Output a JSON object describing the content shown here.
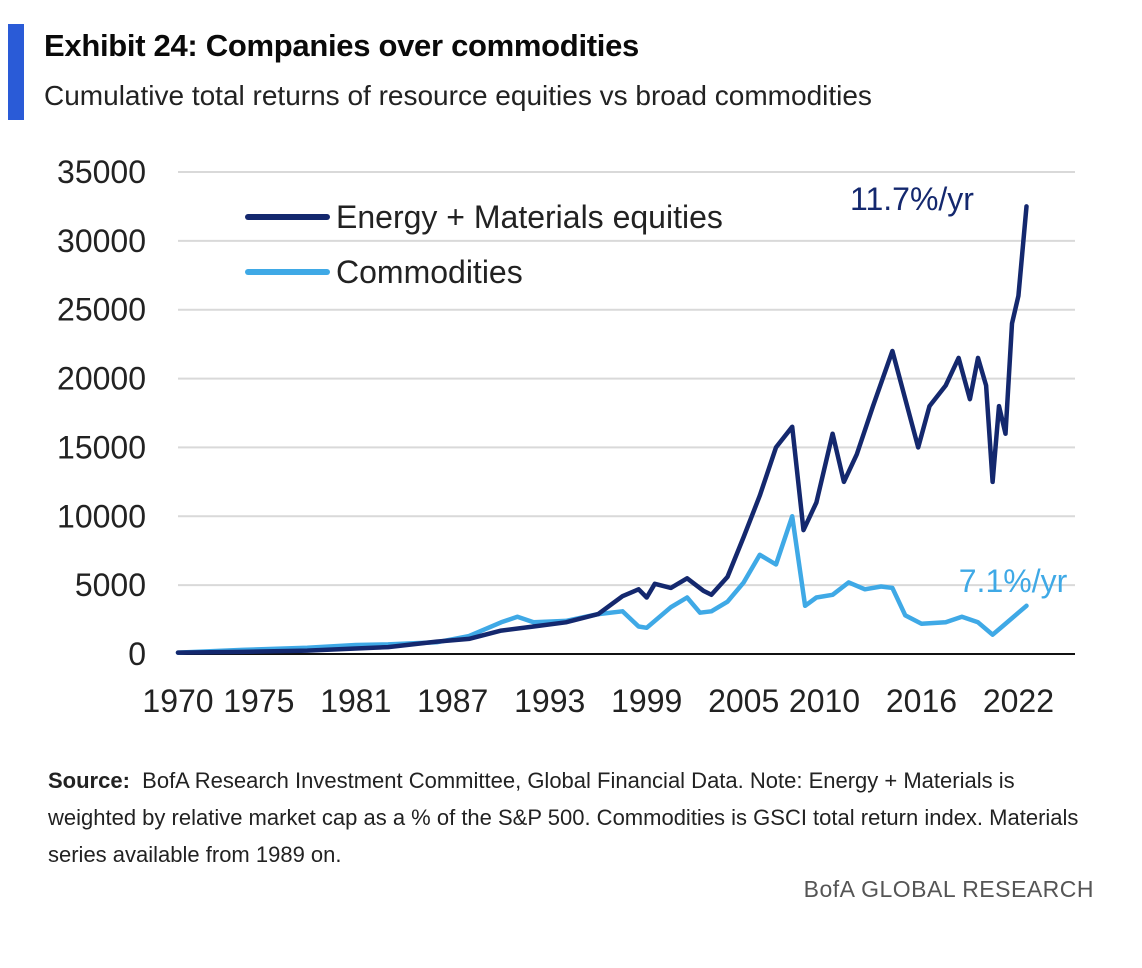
{
  "header": {
    "title": "Exhibit 24: Companies over commodities",
    "subtitle": "Cumulative total returns of resource equities vs broad commodities"
  },
  "footer": {
    "source_label": "Source:",
    "source_text": "BofA Research Investment Committee, Global Financial Data. Note: Energy + Materials is weighted by relative market cap as a % of the S&P 500. Commodities is GSCI total return index. Materials series available from 1989 on.",
    "brand": "BofA GLOBAL RESEARCH"
  },
  "colors": {
    "accent": "#2a5bd7",
    "energy": "#14286e",
    "commodities": "#3fa9e6",
    "grid": "#d9d9d9"
  },
  "chart_data": {
    "type": "line",
    "title": "Exhibit 24: Companies over commodities",
    "xlabel": "",
    "ylabel": "",
    "xlim": [
      1970,
      2025.5
    ],
    "ylim": [
      0,
      35000
    ],
    "x_ticks": [
      1970,
      1975,
      1981,
      1987,
      1993,
      1999,
      2005,
      2010,
      2016,
      2022
    ],
    "y_ticks": [
      0,
      5000,
      10000,
      15000,
      20000,
      25000,
      30000,
      35000
    ],
    "grid": true,
    "legend_position": "top-left",
    "series": [
      {
        "name": "Energy + Materials equities",
        "color": "#14286e",
        "end_label": "11.7%/yr",
        "points": [
          [
            1970,
            100
          ],
          [
            1974,
            150
          ],
          [
            1978,
            250
          ],
          [
            1981,
            400
          ],
          [
            1983,
            500
          ],
          [
            1986,
            900
          ],
          [
            1988,
            1100
          ],
          [
            1990,
            1700
          ],
          [
            1992,
            2000
          ],
          [
            1994,
            2300
          ],
          [
            1996,
            2900
          ],
          [
            1997.5,
            4200
          ],
          [
            1998.5,
            4700
          ],
          [
            1999,
            4100
          ],
          [
            1999.5,
            5100
          ],
          [
            2000.5,
            4800
          ],
          [
            2001.5,
            5500
          ],
          [
            2002.5,
            4600
          ],
          [
            2003,
            4300
          ],
          [
            2004,
            5600
          ],
          [
            2005,
            8500
          ],
          [
            2006,
            11500
          ],
          [
            2007,
            15000
          ],
          [
            2008,
            16500
          ],
          [
            2008.7,
            9000
          ],
          [
            2009.5,
            11000
          ],
          [
            2010.5,
            16000
          ],
          [
            2011.2,
            12500
          ],
          [
            2012,
            14500
          ],
          [
            2013,
            18000
          ],
          [
            2014.2,
            22000
          ],
          [
            2015,
            18500
          ],
          [
            2015.8,
            15000
          ],
          [
            2016.5,
            18000
          ],
          [
            2017.5,
            19500
          ],
          [
            2018.3,
            21500
          ],
          [
            2019,
            18500
          ],
          [
            2019.5,
            21500
          ],
          [
            2020,
            19500
          ],
          [
            2020.4,
            12500
          ],
          [
            2020.8,
            18000
          ],
          [
            2021.2,
            16000
          ],
          [
            2021.6,
            24000
          ],
          [
            2022,
            26000
          ],
          [
            2022.5,
            32500
          ]
        ]
      },
      {
        "name": "Commodities",
        "color": "#3fa9e6",
        "end_label": "7.1%/yr",
        "points": [
          [
            1970,
            100
          ],
          [
            1974,
            300
          ],
          [
            1978,
            450
          ],
          [
            1981,
            650
          ],
          [
            1983,
            700
          ],
          [
            1986,
            850
          ],
          [
            1988,
            1300
          ],
          [
            1990,
            2300
          ],
          [
            1991,
            2700
          ],
          [
            1992,
            2300
          ],
          [
            1994,
            2400
          ],
          [
            1996,
            2900
          ],
          [
            1997.5,
            3100
          ],
          [
            1998.5,
            2000
          ],
          [
            1999,
            1900
          ],
          [
            2000.5,
            3400
          ],
          [
            2001.5,
            4100
          ],
          [
            2002.3,
            3000
          ],
          [
            2003,
            3100
          ],
          [
            2004,
            3800
          ],
          [
            2005,
            5200
          ],
          [
            2006,
            7200
          ],
          [
            2007,
            6500
          ],
          [
            2008,
            10000
          ],
          [
            2008.8,
            3500
          ],
          [
            2009.5,
            4100
          ],
          [
            2010.5,
            4300
          ],
          [
            2011.5,
            5200
          ],
          [
            2012.5,
            4700
          ],
          [
            2013.5,
            4900
          ],
          [
            2014.2,
            4800
          ],
          [
            2015,
            2800
          ],
          [
            2016,
            2200
          ],
          [
            2017.5,
            2300
          ],
          [
            2018.5,
            2700
          ],
          [
            2019.5,
            2300
          ],
          [
            2020.4,
            1400
          ],
          [
            2021,
            2000
          ],
          [
            2022,
            3000
          ],
          [
            2022.5,
            3500
          ]
        ]
      }
    ]
  }
}
